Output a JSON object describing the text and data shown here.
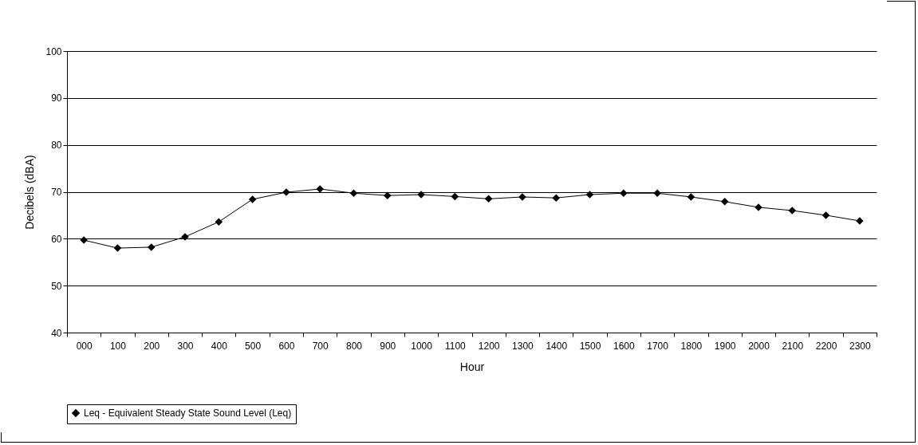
{
  "chart_data": {
    "type": "line",
    "xlabel": "Hour",
    "ylabel": "Decibels (dBA)",
    "categories": [
      "000",
      "100",
      "200",
      "300",
      "400",
      "500",
      "600",
      "700",
      "800",
      "900",
      "1000",
      "1100",
      "1200",
      "1300",
      "1400",
      "1500",
      "1600",
      "1700",
      "1800",
      "1900",
      "2000",
      "2100",
      "2200",
      "2300"
    ],
    "series": [
      {
        "name": "Leq - Equivalent Steady State Sound Level (Leq)",
        "color": "#000000",
        "values": [
          59.7,
          58.0,
          58.2,
          60.4,
          63.6,
          68.4,
          69.9,
          70.6,
          69.7,
          69.2,
          69.4,
          69.0,
          68.5,
          68.9,
          68.7,
          69.4,
          69.7,
          69.7,
          68.9,
          67.9,
          66.7,
          66.0,
          65.0,
          63.8
        ]
      }
    ],
    "ylim": [
      40,
      100
    ],
    "yticks": [
      40,
      50,
      60,
      70,
      80,
      90,
      100
    ],
    "grid": "y",
    "legend": "bottom",
    "marker": "diamond",
    "line_style": "solid"
  }
}
